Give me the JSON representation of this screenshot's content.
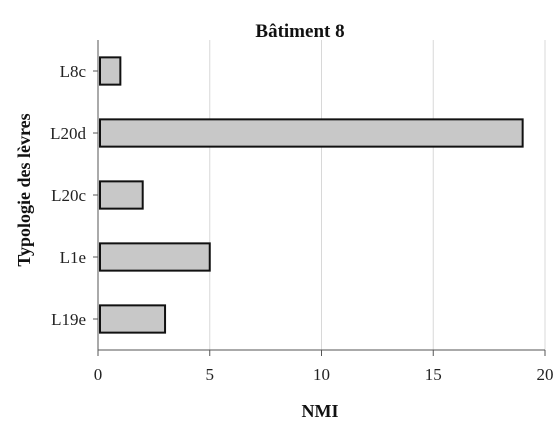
{
  "chart_data": {
    "type": "bar",
    "orientation": "horizontal",
    "title": "Bâtiment 8",
    "xlabel": "NMI",
    "ylabel": "Typologie des lèvres",
    "categories": [
      "L8c",
      "L20d",
      "L20c",
      "L1e",
      "L19e"
    ],
    "values": [
      1,
      19,
      2,
      5,
      3
    ],
    "xlim": [
      0,
      20
    ],
    "xticks": [
      0,
      5,
      10,
      15,
      20
    ],
    "grid": true,
    "bar_color": "#c8c8c8",
    "bar_edge_color": "#111111"
  }
}
